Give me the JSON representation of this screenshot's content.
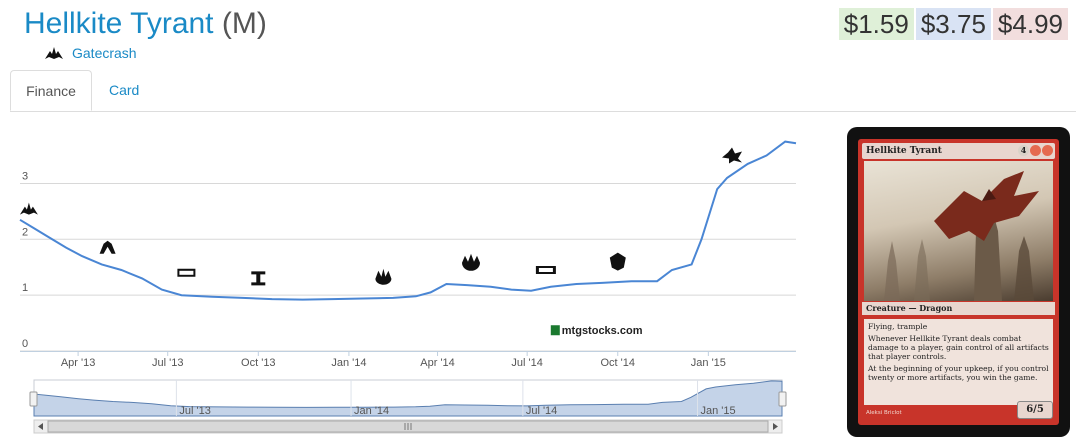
{
  "header": {
    "card_name": "Hellkite Tyrant",
    "rarity": "(M)",
    "set_name": "Gatecrash",
    "set_icon": "gatecrash-set-icon"
  },
  "prices": [
    {
      "label": "$1.59",
      "color": "#dff0d8"
    },
    {
      "label": "$3.75",
      "color": "#d9e3f4"
    },
    {
      "label": "$4.99",
      "color": "#f2dede"
    }
  ],
  "tabs": [
    {
      "label": "Finance",
      "active": true
    },
    {
      "label": "Card",
      "active": false
    }
  ],
  "chart_data": {
    "type": "line",
    "watermark": "mtgstocks.com",
    "line_color": "#4a86d4",
    "y_ticks": [
      "0",
      "1",
      "2",
      "3"
    ],
    "ylim": [
      0,
      3.85
    ],
    "xlim": [
      "2013-02-01",
      "2015-03-31"
    ],
    "x_ticks": [
      {
        "label": "Apr '13",
        "date": "2013-04-01"
      },
      {
        "label": "Jul '13",
        "date": "2013-07-01"
      },
      {
        "label": "Oct '13",
        "date": "2013-10-01"
      },
      {
        "label": "Jan '14",
        "date": "2014-01-01"
      },
      {
        "label": "Apr '14",
        "date": "2014-04-01"
      },
      {
        "label": "Jul '14",
        "date": "2014-07-01"
      },
      {
        "label": "Oct '14",
        "date": "2014-10-01"
      },
      {
        "label": "Jan '15",
        "date": "2015-01-01"
      }
    ],
    "navigator_ticks": [
      {
        "label": "Jul '13",
        "date": "2013-07-01"
      },
      {
        "label": "Jan '14",
        "date": "2014-01-01"
      },
      {
        "label": "Jul '14",
        "date": "2014-07-01"
      },
      {
        "label": "Jan '15",
        "date": "2015-01-01"
      }
    ],
    "series": [
      {
        "points": [
          [
            "2013-02-01",
            2.35
          ],
          [
            "2013-02-15",
            2.2
          ],
          [
            "2013-03-01",
            2.05
          ],
          [
            "2013-03-20",
            1.85
          ],
          [
            "2013-04-05",
            1.7
          ],
          [
            "2013-04-25",
            1.55
          ],
          [
            "2013-05-15",
            1.45
          ],
          [
            "2013-06-05",
            1.3
          ],
          [
            "2013-06-25",
            1.1
          ],
          [
            "2013-07-15",
            1.0
          ],
          [
            "2013-08-15",
            0.97
          ],
          [
            "2013-09-15",
            0.95
          ],
          [
            "2013-10-15",
            0.93
          ],
          [
            "2013-11-15",
            0.92
          ],
          [
            "2013-12-15",
            0.93
          ],
          [
            "2014-01-15",
            0.94
          ],
          [
            "2014-02-15",
            0.95
          ],
          [
            "2014-03-10",
            0.98
          ],
          [
            "2014-03-25",
            1.05
          ],
          [
            "2014-04-10",
            1.2
          ],
          [
            "2014-05-01",
            1.18
          ],
          [
            "2014-05-25",
            1.15
          ],
          [
            "2014-06-15",
            1.1
          ],
          [
            "2014-07-05",
            1.08
          ],
          [
            "2014-07-25",
            1.15
          ],
          [
            "2014-08-20",
            1.2
          ],
          [
            "2014-09-15",
            1.22
          ],
          [
            "2014-10-15",
            1.25
          ],
          [
            "2014-11-10",
            1.25
          ],
          [
            "2014-11-25",
            1.45
          ],
          [
            "2014-12-15",
            1.55
          ],
          [
            "2014-12-25",
            2.0
          ],
          [
            "2015-01-10",
            2.9
          ],
          [
            "2015-01-20",
            3.1
          ],
          [
            "2015-02-10",
            3.35
          ],
          [
            "2015-03-01",
            3.5
          ],
          [
            "2015-03-20",
            3.75
          ],
          [
            "2015-03-31",
            3.72
          ]
        ]
      }
    ],
    "set_markers": [
      {
        "icon": "gatecrash-set-icon",
        "date": "2013-02-10",
        "value": 2.55
      },
      {
        "icon": "dragons-maze-set-icon",
        "date": "2013-05-01",
        "value": 1.85
      },
      {
        "icon": "m14-set-icon",
        "date": "2013-07-20",
        "value": 1.4
      },
      {
        "icon": "theros-set-icon",
        "date": "2013-10-01",
        "value": 1.3
      },
      {
        "icon": "born-of-the-gods-set-icon",
        "date": "2014-02-05",
        "value": 1.33
      },
      {
        "icon": "journey-into-nyx-set-icon",
        "date": "2014-05-05",
        "value": 1.58
      },
      {
        "icon": "m15-set-icon",
        "date": "2014-07-20",
        "value": 1.45
      },
      {
        "icon": "khans-set-icon",
        "date": "2014-10-01",
        "value": 1.6
      },
      {
        "icon": "fate-reforged-set-icon",
        "date": "2015-01-25",
        "value": 3.5
      }
    ]
  },
  "card_image": {
    "name": "Hellkite Tyrant",
    "mana_cost": "4",
    "mana_colors": [
      "#d9d2c8",
      "#e56a50",
      "#e56a50"
    ],
    "type_line": "Creature — Dragon",
    "rules_text": [
      "Flying, trample",
      "Whenever Hellkite Tyrant deals combat damage to a player, gain control of all artifacts that player controls.",
      "At the beginning of your upkeep, if you control twenty or more artifacts, you win the game."
    ],
    "power_toughness": "6/5",
    "artist": "Aleksi Briclot"
  }
}
